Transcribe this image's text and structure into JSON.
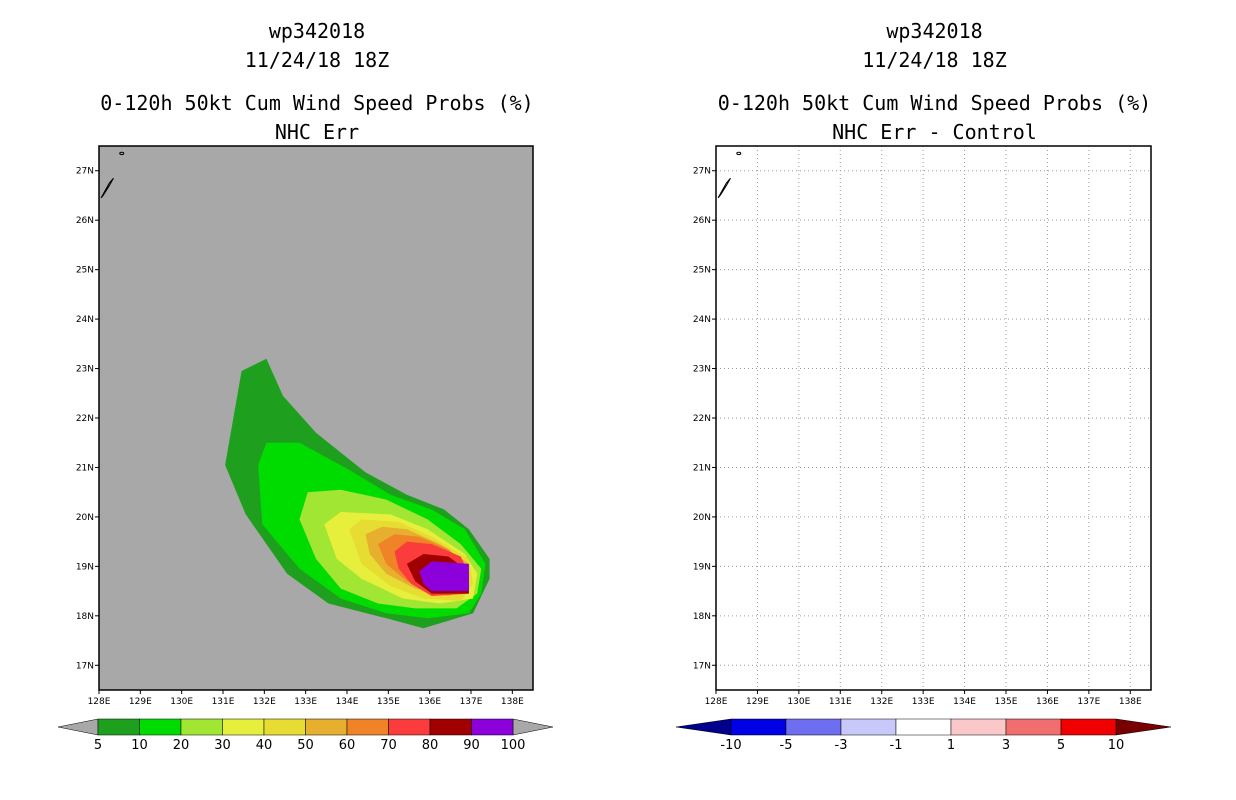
{
  "chart_data": [
    {
      "type": "heatmap",
      "map": "filled-contour",
      "title_lines": [
        "wp342018",
        "11/24/18 18Z"
      ],
      "subtitle_lines": [
        "0-120h 50kt Cum Wind Speed Probs (%)",
        "NHC Err"
      ],
      "x_ticks": [
        "128E",
        "129E",
        "130E",
        "131E",
        "132E",
        "133E",
        "134E",
        "135E",
        "136E",
        "137E",
        "138E"
      ],
      "y_ticks": [
        "17N",
        "18N",
        "19N",
        "20N",
        "21N",
        "22N",
        "23N",
        "24N",
        "25N",
        "26N",
        "27N"
      ],
      "xlim": [
        128,
        138.5
      ],
      "ylim": [
        16.5,
        27.5
      ],
      "background_color": "#a8a8a8",
      "grid": false,
      "colorbar": {
        "labels": [
          "5",
          "10",
          "20",
          "30",
          "40",
          "50",
          "60",
          "70",
          "80",
          "90",
          "100"
        ],
        "colors": [
          "#1ea01e",
          "#00dc00",
          "#a0e632",
          "#e6f03c",
          "#e6dc32",
          "#e6af2d",
          "#f08228",
          "#fa3c3c",
          "#a00000",
          "#8c00dc"
        ],
        "below_color": "#a8a8a8",
        "above_color": "#a8a8a8"
      },
      "contours": [
        {
          "level": 5,
          "color": "#1ea01e",
          "polygon": [
            [
              131.05,
              21.05
            ],
            [
              131.45,
              22.95
            ],
            [
              132.05,
              23.2
            ],
            [
              132.45,
              22.45
            ],
            [
              133.25,
              21.7
            ],
            [
              134.45,
              20.9
            ],
            [
              135.45,
              20.45
            ],
            [
              136.35,
              20.15
            ],
            [
              136.95,
              19.75
            ],
            [
              137.45,
              19.15
            ],
            [
              137.45,
              18.75
            ],
            [
              137.05,
              18.05
            ],
            [
              135.85,
              17.75
            ],
            [
              134.95,
              17.95
            ],
            [
              133.55,
              18.25
            ],
            [
              132.55,
              18.85
            ],
            [
              131.55,
              20.05
            ]
          ]
        },
        {
          "level": 10,
          "color": "#00dc00",
          "polygon": [
            [
              131.85,
              21.05
            ],
            [
              132.05,
              21.5
            ],
            [
              132.85,
              21.5
            ],
            [
              134.05,
              20.95
            ],
            [
              135.05,
              20.45
            ],
            [
              136.05,
              20.15
            ],
            [
              136.85,
              19.75
            ],
            [
              137.35,
              19.05
            ],
            [
              137.25,
              18.45
            ],
            [
              136.95,
              18.05
            ],
            [
              135.95,
              17.95
            ],
            [
              134.95,
              18.05
            ],
            [
              133.85,
              18.35
            ],
            [
              132.85,
              18.95
            ],
            [
              131.95,
              19.85
            ]
          ]
        },
        {
          "level": 20,
          "color": "#a0e632",
          "polygon": [
            [
              132.85,
              19.95
            ],
            [
              133.05,
              20.5
            ],
            [
              133.85,
              20.55
            ],
            [
              134.95,
              20.35
            ],
            [
              135.95,
              19.95
            ],
            [
              136.75,
              19.45
            ],
            [
              137.25,
              18.95
            ],
            [
              137.15,
              18.45
            ],
            [
              136.65,
              18.15
            ],
            [
              135.65,
              18.15
            ],
            [
              134.75,
              18.25
            ],
            [
              133.85,
              18.55
            ],
            [
              133.25,
              19.15
            ]
          ]
        },
        {
          "level": 30,
          "color": "#e6f03c",
          "polygon": [
            [
              133.45,
              19.85
            ],
            [
              133.85,
              20.1
            ],
            [
              135.05,
              20.05
            ],
            [
              135.95,
              19.75
            ],
            [
              136.85,
              19.25
            ],
            [
              137.15,
              18.85
            ],
            [
              137.05,
              18.35
            ],
            [
              136.25,
              18.25
            ],
            [
              135.35,
              18.35
            ],
            [
              134.35,
              18.75
            ],
            [
              133.75,
              19.15
            ]
          ]
        },
        {
          "level": 40,
          "color": "#e6dc32",
          "polygon": [
            [
              134.05,
              19.75
            ],
            [
              134.35,
              19.95
            ],
            [
              135.25,
              19.9
            ],
            [
              136.05,
              19.6
            ],
            [
              136.95,
              19.15
            ],
            [
              137.05,
              18.65
            ],
            [
              136.75,
              18.3
            ],
            [
              135.85,
              18.35
            ],
            [
              135.05,
              18.6
            ],
            [
              134.35,
              19.05
            ]
          ]
        },
        {
          "level": 50,
          "color": "#e6af2d",
          "polygon": [
            [
              134.45,
              19.65
            ],
            [
              134.85,
              19.8
            ],
            [
              135.45,
              19.75
            ],
            [
              136.25,
              19.45
            ],
            [
              136.95,
              19.05
            ],
            [
              136.95,
              18.55
            ],
            [
              136.45,
              18.4
            ],
            [
              135.65,
              18.55
            ],
            [
              134.95,
              18.85
            ],
            [
              134.55,
              19.25
            ]
          ]
        },
        {
          "level": 60,
          "color": "#f08228",
          "polygon": [
            [
              134.75,
              19.45
            ],
            [
              135.15,
              19.65
            ],
            [
              135.75,
              19.6
            ],
            [
              136.45,
              19.35
            ],
            [
              136.95,
              18.95
            ],
            [
              136.95,
              18.5
            ],
            [
              136.25,
              18.45
            ],
            [
              135.45,
              18.7
            ],
            [
              134.95,
              19.05
            ]
          ]
        },
        {
          "level": 70,
          "color": "#fa3c3c",
          "polygon": [
            [
              135.15,
              19.3
            ],
            [
              135.45,
              19.5
            ],
            [
              136.05,
              19.45
            ],
            [
              136.75,
              19.2
            ],
            [
              136.95,
              18.85
            ],
            [
              136.95,
              18.45
            ],
            [
              136.05,
              18.4
            ],
            [
              135.55,
              18.65
            ],
            [
              135.25,
              18.95
            ]
          ]
        },
        {
          "level": 80,
          "color": "#a00000",
          "polygon": [
            [
              135.45,
              19.05
            ],
            [
              135.85,
              19.25
            ],
            [
              136.45,
              19.2
            ],
            [
              136.95,
              18.9
            ],
            [
              136.95,
              18.45
            ],
            [
              136.05,
              18.45
            ],
            [
              135.65,
              18.7
            ]
          ]
        },
        {
          "level": 90,
          "color": "#8c00dc",
          "polygon": [
            [
              135.75,
              18.9
            ],
            [
              136.05,
              19.1
            ],
            [
              136.95,
              19.05
            ],
            [
              136.95,
              18.5
            ],
            [
              136.05,
              18.5
            ],
            [
              135.85,
              18.65
            ]
          ]
        }
      ]
    },
    {
      "type": "heatmap",
      "map": "difference",
      "title_lines": [
        "wp342018",
        "11/24/18 18Z"
      ],
      "subtitle_lines": [
        "0-120h 50kt Cum Wind Speed Probs (%)",
        "NHC Err - Control"
      ],
      "x_ticks": [
        "128E",
        "129E",
        "130E",
        "131E",
        "132E",
        "133E",
        "134E",
        "135E",
        "136E",
        "137E",
        "138E"
      ],
      "y_ticks": [
        "17N",
        "18N",
        "19N",
        "20N",
        "21N",
        "22N",
        "23N",
        "24N",
        "25N",
        "26N",
        "27N"
      ],
      "xlim": [
        128,
        138.5
      ],
      "ylim": [
        16.5,
        27.5
      ],
      "background_color": "#ffffff",
      "grid": true,
      "colorbar": {
        "labels": [
          "-10",
          "-5",
          "-3",
          "-1",
          "1",
          "3",
          "5",
          "10"
        ],
        "colors": [
          "#0000e6",
          "#6e6ef0",
          "#c8c8fa",
          "#ffffff",
          "#fac8c8",
          "#f06e6e",
          "#f00000"
        ],
        "below_color": "#00008c",
        "above_color": "#780000"
      },
      "contours": []
    }
  ]
}
